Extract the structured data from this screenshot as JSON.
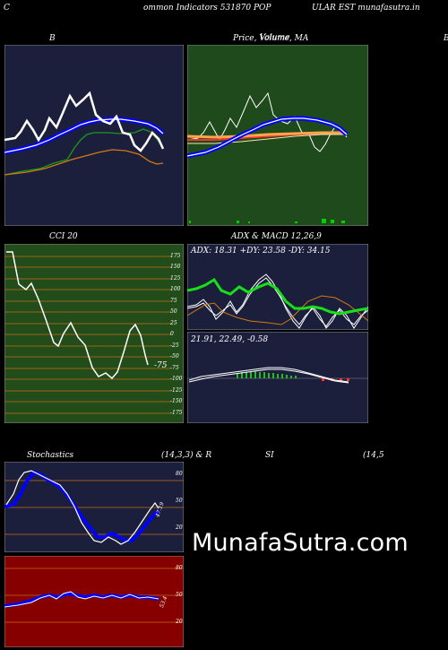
{
  "header": {
    "left_letter": "C",
    "title_part1": "ommon  Indicators 531870  POP",
    "title_part2": "ULAR EST munafasutra.in"
  },
  "panels": {
    "bollinger": {
      "title": "B"
    },
    "price": {
      "title": "Price,  Volume,  MA",
      "overlap": "Volume",
      "right_letter": "B"
    },
    "cci": {
      "title": "CCI 20",
      "value": "-75",
      "ticks": [
        "175",
        "150",
        "125",
        "100",
        "75",
        "50",
        "25",
        "0",
        "-25",
        "-50",
        "-75",
        "-100",
        "-125",
        "-150",
        "-175"
      ]
    },
    "adx": {
      "title": "ADX  & MACD 12,26,9",
      "values": "ADX: 18.31  +DY: 23.58  -DY: 34.15"
    },
    "macd": {
      "values": "21.91,  22.49,  -0.58"
    },
    "stochastics": {
      "title": "Stochastics",
      "params": "(14,3,3) & R",
      "rsi_title": "SI",
      "rsi_params": "(14,5",
      "value": "47.19",
      "ticks": [
        "80",
        "50",
        "20"
      ]
    },
    "rsi": {
      "value": "53.4",
      "ticks": [
        "80",
        "50",
        "20"
      ]
    }
  },
  "watermark": "MunafaSutra.com",
  "colors": {
    "navy": "#1c1f3c",
    "green_panel": "#1e4a1c",
    "cci_bg": "#234c1b",
    "rsi_bg": "#860000",
    "grid_orange": "#c46b12"
  }
}
